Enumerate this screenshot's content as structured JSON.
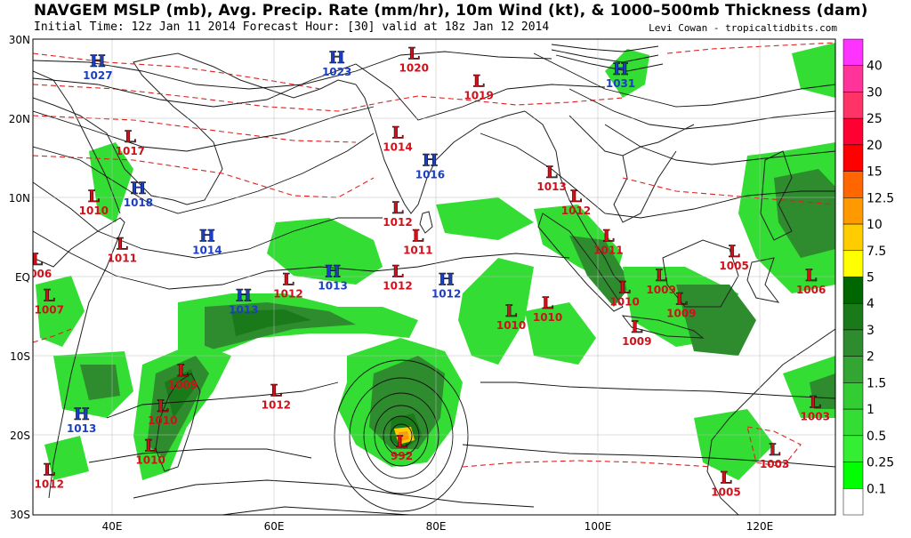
{
  "header": {
    "title": "NAVGEM MSLP (mb), Avg. Precip. Rate (mm/hr), 10m Wind (kt), & 1000–500mb Thickness (dam)",
    "subtitle": "Initial Time: 12z Jan 11 2014 Forecast Hour: [30] valid at 18z Jan 12 2014",
    "credit": "Levi Cowan - tropicaltidbits.com"
  },
  "axes": {
    "lat_labels": [
      "30N",
      "20N",
      "10N",
      "EQ",
      "10S",
      "20S",
      "30S"
    ],
    "lon_labels": [
      "40E",
      "60E",
      "80E",
      "100E",
      "120E"
    ]
  },
  "colorbar": {
    "labels": [
      "40",
      "30",
      "25",
      "20",
      "15",
      "12.5",
      "10",
      "7.5",
      "5",
      "4",
      "3",
      "2",
      "1.5",
      "1",
      "0.5",
      "0.25",
      "0.1"
    ],
    "colors": [
      "#ff33ff",
      "#ff3399",
      "#ff3366",
      "#ff0033",
      "#ff0000",
      "#ff6600",
      "#ff9900",
      "#ffcc00",
      "#ffff00",
      "#006600",
      "#1a7a1a",
      "#2e8b2e",
      "#33a533",
      "#33cc33",
      "#33dd33",
      "#33ee33",
      "#00ff00",
      "#ffffff"
    ]
  },
  "pressure_centers": [
    {
      "type": "H",
      "value": "1027",
      "lon": 38,
      "lat": 26.5
    },
    {
      "type": "H",
      "value": "1023",
      "lon": 67.5,
      "lat": 27
    },
    {
      "type": "L",
      "value": "1020",
      "lon": 77,
      "lat": 27.5
    },
    {
      "type": "L",
      "value": "1019",
      "lon": 85,
      "lat": 24
    },
    {
      "type": "H",
      "value": "1031",
      "lon": 102.5,
      "lat": 25.5
    },
    {
      "type": "L",
      "value": "1017",
      "lon": 42,
      "lat": 17
    },
    {
      "type": "L",
      "value": "1014",
      "lon": 75,
      "lat": 17.5
    },
    {
      "type": "H",
      "value": "1016",
      "lon": 79,
      "lat": 14
    },
    {
      "type": "L",
      "value": "1013",
      "lon": 94,
      "lat": 12.5
    },
    {
      "type": "L",
      "value": "1012",
      "lon": 97,
      "lat": 9.5
    },
    {
      "type": "H",
      "value": "1018",
      "lon": 43,
      "lat": 10.5
    },
    {
      "type": "L",
      "value": "1010",
      "lon": 37.5,
      "lat": 9.5
    },
    {
      "type": "L",
      "value": "1012",
      "lon": 75,
      "lat": 8
    },
    {
      "type": "H",
      "value": "1014",
      "lon": 51.5,
      "lat": 4.5
    },
    {
      "type": "L",
      "value": "1011",
      "lon": 41,
      "lat": 3.5
    },
    {
      "type": "L",
      "value": "1011",
      "lon": 77.5,
      "lat": 4.5
    },
    {
      "type": "L",
      "value": "1011",
      "lon": 101,
      "lat": 4.5
    },
    {
      "type": "L",
      "value": "1006",
      "lon": 30.5,
      "lat": 1.5
    },
    {
      "type": "H",
      "value": "1013",
      "lon": 67,
      "lat": 0
    },
    {
      "type": "L",
      "value": "1012",
      "lon": 61.5,
      "lat": -1
    },
    {
      "type": "L",
      "value": "1012",
      "lon": 75,
      "lat": 0
    },
    {
      "type": "H",
      "value": "1012",
      "lon": 81,
      "lat": -1
    },
    {
      "type": "L",
      "value": "1005",
      "lon": 116.5,
      "lat": 2.5
    },
    {
      "type": "L",
      "value": "1009",
      "lon": 107.5,
      "lat": -0.5
    },
    {
      "type": "L",
      "value": "1006",
      "lon": 126,
      "lat": -0.5
    },
    {
      "type": "L",
      "value": "1007",
      "lon": 32,
      "lat": -3
    },
    {
      "type": "H",
      "value": "1013",
      "lon": 56,
      "lat": -3
    },
    {
      "type": "L",
      "value": "1010",
      "lon": 103,
      "lat": -2
    },
    {
      "type": "L",
      "value": "1009",
      "lon": 110,
      "lat": -3.5
    },
    {
      "type": "L",
      "value": "1010",
      "lon": 89,
      "lat": -5
    },
    {
      "type": "L",
      "value": "1010",
      "lon": 93.5,
      "lat": -4
    },
    {
      "type": "L",
      "value": "1009",
      "lon": 104.5,
      "lat": -7
    },
    {
      "type": "L",
      "value": "1009",
      "lon": 48.5,
      "lat": -12.5
    },
    {
      "type": "L",
      "value": "1012",
      "lon": 60,
      "lat": -15
    },
    {
      "type": "L",
      "value": "1010",
      "lon": 46,
      "lat": -17
    },
    {
      "type": "H",
      "value": "1013",
      "lon": 36,
      "lat": -18
    },
    {
      "type": "L",
      "value": "1003",
      "lon": 126.5,
      "lat": -16.5
    },
    {
      "type": "L",
      "value": "992",
      "lon": 75.5,
      "lat": -21.5
    },
    {
      "type": "L",
      "value": "1010",
      "lon": 44.5,
      "lat": -22
    },
    {
      "type": "L",
      "value": "1003",
      "lon": 121.5,
      "lat": -22.5
    },
    {
      "type": "L",
      "value": "1012",
      "lon": 32,
      "lat": -25
    },
    {
      "type": "L",
      "value": "1005",
      "lon": 115.5,
      "lat": -26
    }
  ]
}
